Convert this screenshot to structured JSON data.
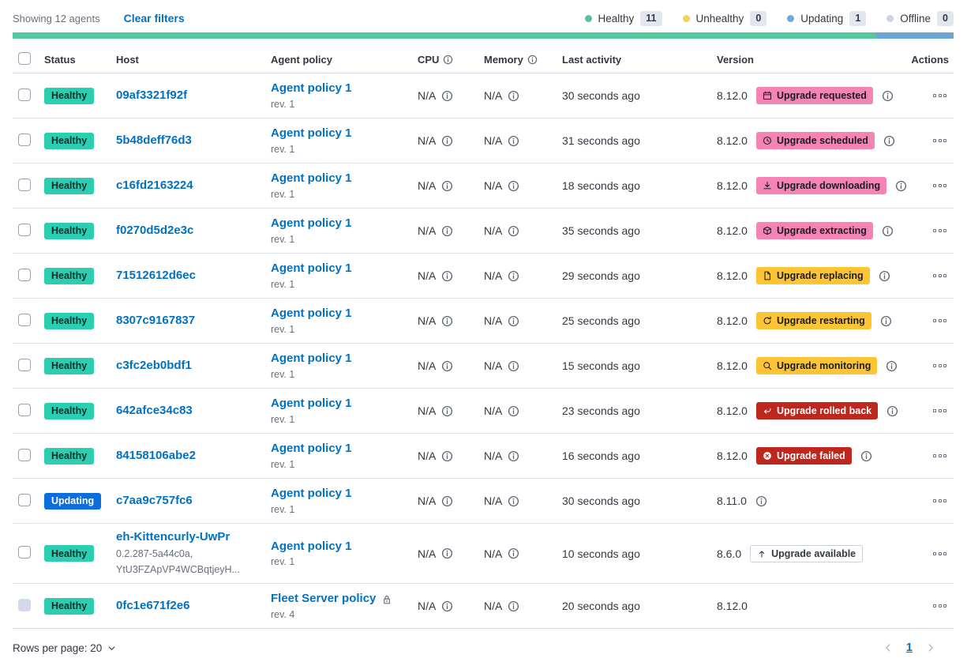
{
  "toolbar": {
    "showing_text": "Showing 12 agents",
    "clear_filters_label": "Clear filters",
    "legend": [
      {
        "label": "Healthy",
        "count": "11",
        "dot_color": "#54c39a",
        "name": "healthy"
      },
      {
        "label": "Unhealthy",
        "count": "0",
        "dot_color": "#efd15e",
        "name": "unhealthy"
      },
      {
        "label": "Updating",
        "count": "1",
        "dot_color": "#6fa7d9",
        "name": "updating"
      },
      {
        "label": "Offline",
        "count": "0",
        "dot_color": "#cdd3de",
        "name": "offline"
      }
    ]
  },
  "health_bar": {
    "segments": [
      {
        "name": "healthy",
        "color": "#57c79d",
        "fraction": 0.9167
      },
      {
        "name": "updating",
        "color": "#6ba6d8",
        "fraction": 0.0833
      }
    ]
  },
  "table": {
    "headers": [
      {
        "label": "Status",
        "info": false
      },
      {
        "label": "Host",
        "info": false
      },
      {
        "label": "Agent policy",
        "info": false
      },
      {
        "label": "CPU",
        "info": true
      },
      {
        "label": "Memory",
        "info": true
      },
      {
        "label": "Last activity",
        "info": false
      },
      {
        "label": "Version",
        "info": false
      },
      {
        "label": "Actions",
        "info": false
      }
    ],
    "rows": [
      {
        "status": "Healthy",
        "status_variant": "healthy",
        "host": "09af3321f92f",
        "host_sub": [],
        "policy": "Agent policy 1",
        "policy_rev": "rev. 1",
        "policy_locked": false,
        "cpu": "N/A",
        "memory": "N/A",
        "last_activity": "30 seconds ago",
        "version": "8.12.0",
        "upgrade": {
          "label": "Upgrade requested",
          "variant": "pink",
          "icon": "calendar-icon"
        },
        "version_info": true,
        "checkbox_disabled": false
      },
      {
        "status": "Healthy",
        "status_variant": "healthy",
        "host": "5b48deff76d3",
        "host_sub": [],
        "policy": "Agent policy 1",
        "policy_rev": "rev. 1",
        "policy_locked": false,
        "cpu": "N/A",
        "memory": "N/A",
        "last_activity": "31 seconds ago",
        "version": "8.12.0",
        "upgrade": {
          "label": "Upgrade scheduled",
          "variant": "pink",
          "icon": "clock-icon"
        },
        "version_info": true,
        "checkbox_disabled": false
      },
      {
        "status": "Healthy",
        "status_variant": "healthy",
        "host": "c16fd2163224",
        "host_sub": [],
        "policy": "Agent policy 1",
        "policy_rev": "rev. 1",
        "policy_locked": false,
        "cpu": "N/A",
        "memory": "N/A",
        "last_activity": "18 seconds ago",
        "version": "8.12.0",
        "upgrade": {
          "label": "Upgrade downloading",
          "variant": "pink",
          "icon": "download-icon"
        },
        "version_info": true,
        "checkbox_disabled": false
      },
      {
        "status": "Healthy",
        "status_variant": "healthy",
        "host": "f0270d5d2e3c",
        "host_sub": [],
        "policy": "Agent policy 1",
        "policy_rev": "rev. 1",
        "policy_locked": false,
        "cpu": "N/A",
        "memory": "N/A",
        "last_activity": "35 seconds ago",
        "version": "8.12.0",
        "upgrade": {
          "label": "Upgrade extracting",
          "variant": "pink",
          "icon": "package-icon"
        },
        "version_info": true,
        "checkbox_disabled": false
      },
      {
        "status": "Healthy",
        "status_variant": "healthy",
        "host": "71512612d6ec",
        "host_sub": [],
        "policy": "Agent policy 1",
        "policy_rev": "rev. 1",
        "policy_locked": false,
        "cpu": "N/A",
        "memory": "N/A",
        "last_activity": "29 seconds ago",
        "version": "8.12.0",
        "upgrade": {
          "label": "Upgrade replacing",
          "variant": "warning",
          "icon": "document-icon"
        },
        "version_info": true,
        "checkbox_disabled": false
      },
      {
        "status": "Healthy",
        "status_variant": "healthy",
        "host": "8307c9167837",
        "host_sub": [],
        "policy": "Agent policy 1",
        "policy_rev": "rev. 1",
        "policy_locked": false,
        "cpu": "N/A",
        "memory": "N/A",
        "last_activity": "25 seconds ago",
        "version": "8.12.0",
        "upgrade": {
          "label": "Upgrade restarting",
          "variant": "warning",
          "icon": "refresh-icon"
        },
        "version_info": true,
        "checkbox_disabled": false
      },
      {
        "status": "Healthy",
        "status_variant": "healthy",
        "host": "c3fc2eb0bdf1",
        "host_sub": [],
        "policy": "Agent policy 1",
        "policy_rev": "rev. 1",
        "policy_locked": false,
        "cpu": "N/A",
        "memory": "N/A",
        "last_activity": "15 seconds ago",
        "version": "8.12.0",
        "upgrade": {
          "label": "Upgrade monitoring",
          "variant": "warning",
          "icon": "inspect-icon"
        },
        "version_info": true,
        "checkbox_disabled": false
      },
      {
        "status": "Healthy",
        "status_variant": "healthy",
        "host": "642afce34c83",
        "host_sub": [],
        "policy": "Agent policy 1",
        "policy_rev": "rev. 1",
        "policy_locked": false,
        "cpu": "N/A",
        "memory": "N/A",
        "last_activity": "23 seconds ago",
        "version": "8.12.0",
        "upgrade": {
          "label": "Upgrade rolled back",
          "variant": "danger",
          "icon": "return-arrow-icon"
        },
        "version_info": true,
        "checkbox_disabled": false
      },
      {
        "status": "Healthy",
        "status_variant": "healthy",
        "host": "84158106abe2",
        "host_sub": [],
        "policy": "Agent policy 1",
        "policy_rev": "rev. 1",
        "policy_locked": false,
        "cpu": "N/A",
        "memory": "N/A",
        "last_activity": "16 seconds ago",
        "version": "8.12.0",
        "upgrade": {
          "label": "Upgrade failed",
          "variant": "danger",
          "icon": "cross-circle-icon"
        },
        "version_info": true,
        "checkbox_disabled": false
      },
      {
        "status": "Updating",
        "status_variant": "updating",
        "host": "c7aa9c757fc6",
        "host_sub": [],
        "policy": "Agent policy 1",
        "policy_rev": "rev. 1",
        "policy_locked": false,
        "cpu": "N/A",
        "memory": "N/A",
        "last_activity": "30 seconds ago",
        "version": "8.11.0",
        "upgrade": null,
        "version_info": true,
        "checkbox_disabled": false
      },
      {
        "status": "Healthy",
        "status_variant": "healthy",
        "host": "eh-Kittencurly-UwPr",
        "host_sub": [
          "0.2.287-5a44c0a,",
          "YtU3FZApVP4WCBqtjeyH..."
        ],
        "policy": "Agent policy 1",
        "policy_rev": "rev. 1",
        "policy_locked": false,
        "cpu": "N/A",
        "memory": "N/A",
        "last_activity": "10 seconds ago",
        "version": "8.6.0",
        "upgrade": {
          "label": "Upgrade available",
          "variant": "hollow",
          "icon": "arrow-up-icon"
        },
        "version_info": false,
        "checkbox_disabled": false
      },
      {
        "status": "Healthy",
        "status_variant": "healthy",
        "host": "0fc1e671f2e6",
        "host_sub": [],
        "policy": "Fleet Server policy",
        "policy_rev": "rev. 4",
        "policy_locked": true,
        "cpu": "N/A",
        "memory": "N/A",
        "last_activity": "20 seconds ago",
        "version": "8.12.0",
        "upgrade": null,
        "version_info": false,
        "checkbox_disabled": true
      }
    ]
  },
  "footer": {
    "rows_per_page_label": "Rows per page: 20",
    "page_label": "1"
  }
}
